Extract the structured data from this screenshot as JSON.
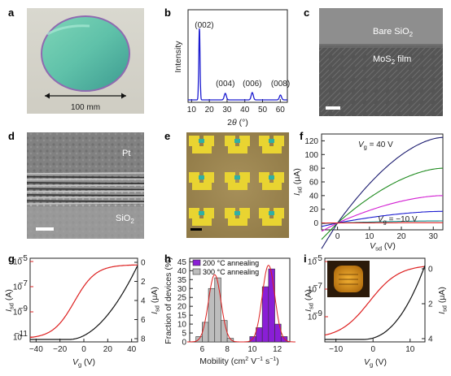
{
  "figure": {
    "panels": {
      "a": {
        "label": "a",
        "scale_text": "100 mm"
      },
      "b": {
        "label": "b",
        "xlabel_base": "2",
        "xlabel_theta": "θ",
        "xlabel_unit": "(°)",
        "ylabel": "Intensity",
        "xticks": [
          "10",
          "20",
          "30",
          "40",
          "50",
          "60"
        ],
        "peaks": [
          "(002)",
          "(004)",
          "(006)",
          "(008)"
        ]
      },
      "c": {
        "label": "c",
        "bare_a": "Bare SiO",
        "bare_sub": "2",
        "film_a": "MoS",
        "film_sub": "2",
        "film_b": " film"
      },
      "d": {
        "label": "d",
        "pt": "Pt",
        "sio_a": "SiO",
        "sio_sub": "2"
      },
      "e": {
        "label": "e"
      },
      "f": {
        "label": "f",
        "yticks": [
          "120",
          "100",
          "80",
          "60",
          "40",
          "20",
          "0"
        ],
        "xticks": [
          "0",
          "10",
          "20",
          "30"
        ],
        "ylabel_a": "I",
        "ylabel_sub": "sd",
        "ylabel_unit": " (μA)",
        "xlabel_a": "V",
        "xlabel_sub": "sd",
        "xlabel_unit": " (V)",
        "ann_top_a": "V",
        "ann_top_sub": "g",
        "ann_top_b": " = 40 V",
        "ann_bot_a": "V",
        "ann_bot_sub": "g",
        "ann_bot_b": " = −10 V"
      },
      "g": {
        "label": "g",
        "xticks": [
          "−40",
          "−20",
          "0",
          "20",
          "40"
        ],
        "yticks_left": [
          "10",
          "10",
          "10",
          "10"
        ],
        "yexp_left": [
          "−5",
          "−7",
          "−9",
          "−11"
        ],
        "yticks_right": [
          "8",
          "6",
          "4",
          "2",
          "0"
        ],
        "ylabel_left_a": "I",
        "ylabel_left_sub": "sd",
        "ylabel_left_unit": " (A)",
        "ylabel_right_a": "I",
        "ylabel_right_sub": "sd",
        "ylabel_right_unit": " (μA)",
        "xlabel_a": "V",
        "xlabel_sub": "g",
        "xlabel_unit": " (V)"
      },
      "h": {
        "label": "h",
        "xlabel": "Mobility (cm",
        "xlabel_sup1": "2",
        "xlabel_mid": " V",
        "xlabel_sup2": "−1",
        "xlabel_mid2": " s",
        "xlabel_sup3": "−1",
        "xlabel_end": ")",
        "ylabel": "Fraction of devices (%)",
        "xticks": [
          "6",
          "8",
          "10",
          "12"
        ],
        "yticks": [
          "45",
          "40",
          "35",
          "30",
          "25",
          "20",
          "15",
          "10",
          "5",
          "0"
        ],
        "legend": [
          "200 °C annealing",
          "300 °C annealing"
        ]
      },
      "i": {
        "label": "i",
        "xticks": [
          "−10",
          "0",
          "10"
        ],
        "yticks_left": [
          "10",
          "10",
          "10"
        ],
        "yexp_left": [
          "−5",
          "−7",
          "−9"
        ],
        "yticks_right": [
          "4",
          "2",
          "0"
        ],
        "ylabel_left_a": "I",
        "ylabel_left_sub": "sd",
        "ylabel_left_unit": " (A)",
        "ylabel_right_a": "I",
        "ylabel_right_sub": "sd",
        "ylabel_right_unit": " (μA)",
        "xlabel_a": "V",
        "xlabel_sub": "g",
        "xlabel_unit": " (V)"
      }
    },
    "colors": {
      "blue": "#1c1cd0",
      "navy": "#1a1a6e",
      "green": "#1d8a1d",
      "magenta": "#d21ed2",
      "teal": "#139393",
      "red": "#dd2020",
      "purple": "#8a1ed6",
      "grey": "#bdbdbd"
    }
  },
  "chart_data": [
    {
      "type": "line",
      "panel": "b",
      "xlabel": "2θ (°)",
      "ylabel": "Intensity",
      "xlim": [
        8,
        64
      ],
      "peaks": [
        {
          "x": 14.4,
          "label": "(002)"
        },
        {
          "x": 29.0,
          "label": "(004)"
        },
        {
          "x": 44.2,
          "label": "(006)"
        },
        {
          "x": 60.1,
          "label": "(008)"
        }
      ]
    },
    {
      "type": "line",
      "panel": "f",
      "xlabel": "Vsd (V)",
      "ylabel": "Isd (μA)",
      "xlim": [
        -5,
        33
      ],
      "ylim": [
        -10,
        130
      ],
      "series": [
        {
          "color": "navy",
          "end": 125
        },
        {
          "color": "green",
          "end": 80
        },
        {
          "color": "magenta",
          "end": 40
        },
        {
          "color": "blue",
          "end": 17
        },
        {
          "color": "teal",
          "end": 3
        },
        {
          "color": "red",
          "end": 0.5
        }
      ]
    },
    {
      "type": "line",
      "panel": "g",
      "xlabel": "Vg (V)",
      "xlim": [
        -45,
        45
      ]
    },
    {
      "type": "bar",
      "panel": "h",
      "xlabel": "Mobility (cm2 V−1 s−1)",
      "ylabel": "Fraction of devices (%)",
      "xlim": [
        5,
        13
      ],
      "ylim": [
        0,
        47
      ],
      "series": [
        {
          "name": "300 °C annealing",
          "bins": [
            5.5,
            6.0,
            6.5,
            7.0,
            7.5,
            8.0
          ],
          "values": [
            3,
            11,
            30,
            36,
            12,
            2
          ]
        },
        {
          "name": "200 °C annealing",
          "bins": [
            9.8,
            10.3,
            10.8,
            11.3,
            11.8,
            12.3
          ],
          "values": [
            3,
            8,
            31,
            41,
            10,
            3
          ]
        }
      ]
    },
    {
      "type": "line",
      "panel": "i",
      "xlabel": "Vg (V)",
      "xlim": [
        -13,
        14
      ]
    }
  ]
}
